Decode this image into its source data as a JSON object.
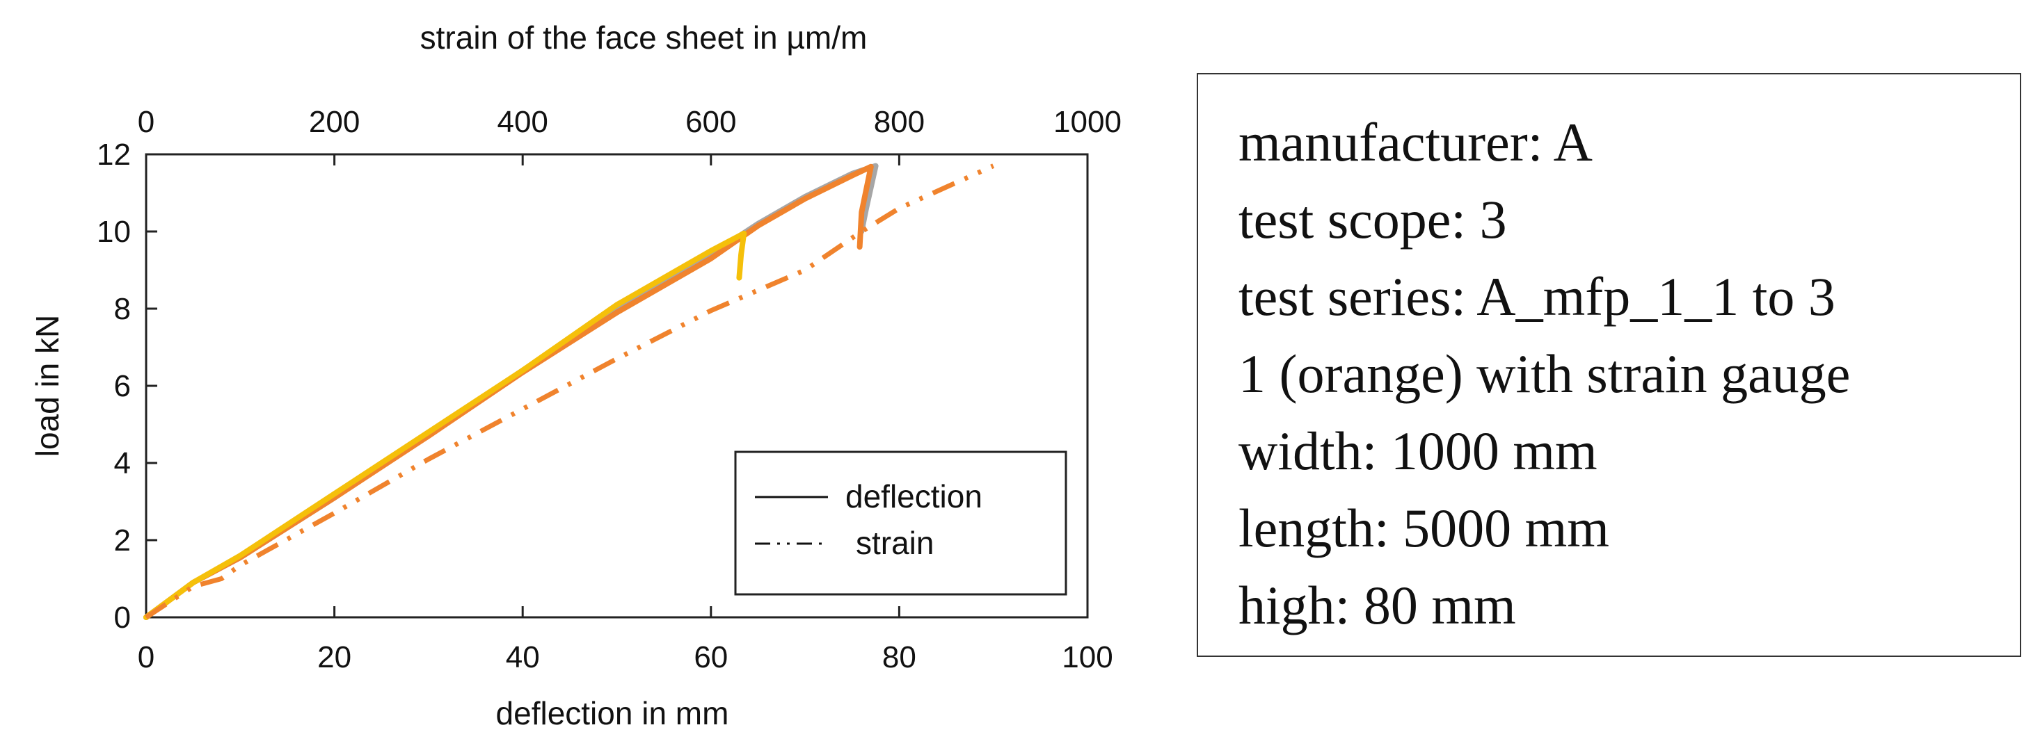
{
  "chart_data": {
    "type": "line",
    "xlabel": "deflection in mm",
    "x2label": "strain of the face sheet in µm/m",
    "ylabel": "load in kN",
    "xlim": [
      0,
      100
    ],
    "x2lim": [
      0,
      1000
    ],
    "ylim": [
      0,
      12
    ],
    "xticks": [
      "0",
      "20",
      "40",
      "60",
      "80",
      "100"
    ],
    "x2ticks": [
      "0",
      "200",
      "400",
      "600",
      "800",
      "1000"
    ],
    "yticks": [
      "0",
      "2",
      "4",
      "6",
      "8",
      "10",
      "12"
    ],
    "grid": false,
    "legend": {
      "position": "bottom-right",
      "entries": [
        {
          "label": "deflection",
          "style": "solid"
        },
        {
          "label": "strain",
          "style": "dash-dot-dot"
        }
      ]
    },
    "series": [
      {
        "style": "solid",
        "axis": "deflection",
        "color": "#a6a6a6",
        "points": [
          [
            0,
            0
          ],
          [
            5,
            0.9
          ],
          [
            10,
            1.55
          ],
          [
            20,
            3.1
          ],
          [
            30,
            4.75
          ],
          [
            40,
            6.4
          ],
          [
            50,
            8.0
          ],
          [
            60,
            9.4
          ],
          [
            65,
            10.2
          ],
          [
            70,
            10.9
          ],
          [
            75,
            11.5
          ],
          [
            77.5,
            11.7
          ],
          [
            76.5,
            10.6
          ],
          [
            76,
            10.0
          ]
        ]
      },
      {
        "style": "solid",
        "axis": "deflection",
        "color": "#f0832d",
        "points": [
          [
            0,
            0
          ],
          [
            5,
            0.9
          ],
          [
            10,
            1.55
          ],
          [
            20,
            3.1
          ],
          [
            30,
            4.7
          ],
          [
            40,
            6.35
          ],
          [
            50,
            7.9
          ],
          [
            60,
            9.3
          ],
          [
            65,
            10.15
          ],
          [
            70,
            10.85
          ],
          [
            75,
            11.45
          ],
          [
            77,
            11.68
          ],
          [
            76,
            10.5
          ],
          [
            75.8,
            9.6
          ]
        ]
      },
      {
        "style": "solid",
        "axis": "deflection",
        "color": "#f5c00a",
        "points": [
          [
            0,
            0
          ],
          [
            5,
            0.9
          ],
          [
            10,
            1.6
          ],
          [
            20,
            3.2
          ],
          [
            30,
            4.8
          ],
          [
            40,
            6.4
          ],
          [
            50,
            8.1
          ],
          [
            60,
            9.5
          ],
          [
            63.5,
            9.95
          ],
          [
            63.2,
            9.4
          ],
          [
            63,
            8.8
          ]
        ]
      },
      {
        "style": "dash-dot-dot",
        "axis": "strain",
        "color": "#f0832d",
        "points": [
          [
            0,
            0
          ],
          [
            50,
            0.8
          ],
          [
            80,
            1.0
          ],
          [
            100,
            1.35
          ],
          [
            200,
            2.7
          ],
          [
            300,
            4.1
          ],
          [
            400,
            5.4
          ],
          [
            500,
            6.7
          ],
          [
            600,
            7.95
          ],
          [
            700,
            9.0
          ],
          [
            760,
            10.0
          ],
          [
            800,
            10.6
          ],
          [
            900,
            11.7
          ]
        ]
      }
    ]
  },
  "info": [
    "manufacturer: A",
    "test scope: 3",
    "test series: A_mfp_1_1 to 3",
    "1 (orange) with strain gauge",
    "width: 1000 mm",
    "length: 5000 mm",
    "high: 80 mm"
  ]
}
